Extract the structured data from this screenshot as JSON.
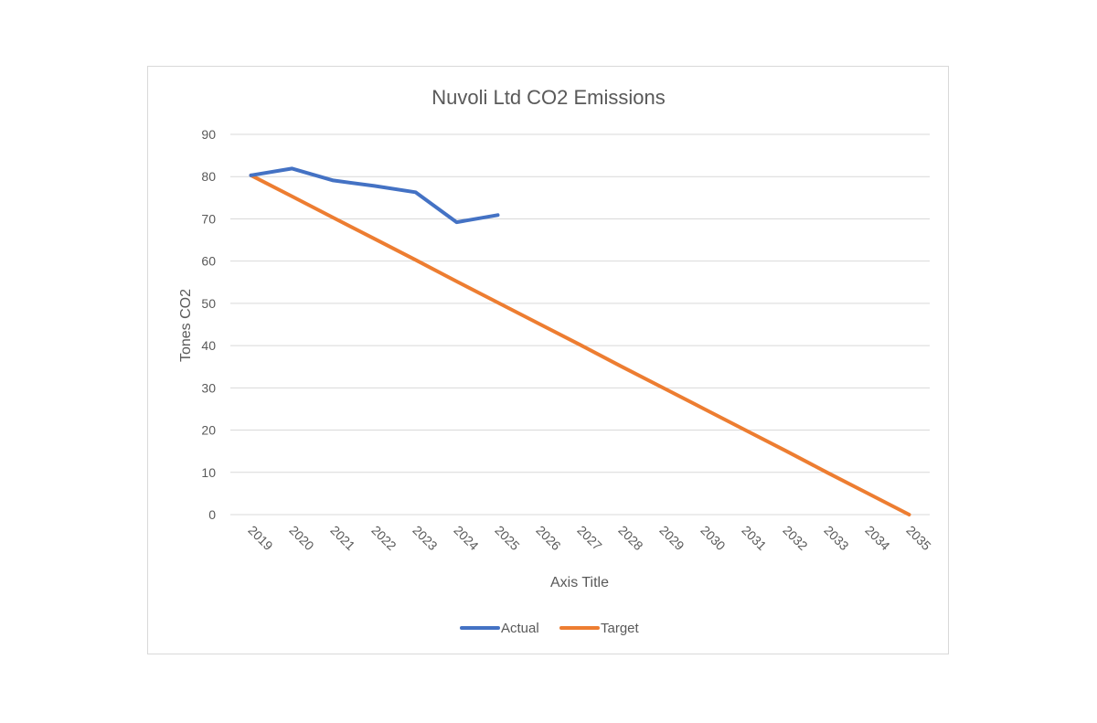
{
  "chart_data": {
    "type": "line",
    "title": "Nuvoli Ltd CO2 Emissions",
    "xlabel": "Axis Title",
    "ylabel": "Tones CO2",
    "categories": [
      "2019",
      "2020",
      "2021",
      "2022",
      "2023",
      "2024",
      "2025",
      "2026",
      "2027",
      "2028",
      "2029",
      "2030",
      "2031",
      "2032",
      "2033",
      "2034",
      "2035"
    ],
    "ylim": [
      0,
      90
    ],
    "yticks": [
      0,
      10,
      20,
      30,
      40,
      50,
      60,
      70,
      80,
      90
    ],
    "grid": true,
    "legend_position": "bottom",
    "series": [
      {
        "name": "Actual",
        "color": "#4472c4",
        "values": [
          80.3,
          81.9,
          79.1,
          77.8,
          76.3,
          69.2,
          70.9,
          null,
          null,
          null,
          null,
          null,
          null,
          null,
          null,
          null,
          null
        ]
      },
      {
        "name": "Target",
        "color": "#ed7d31",
        "values": [
          80.3,
          75.3,
          70.3,
          65.3,
          60.3,
          55.2,
          50.2,
          45.2,
          40.2,
          35.1,
          30.1,
          25.1,
          20.1,
          15.1,
          10.0,
          5.0,
          0
        ]
      }
    ]
  }
}
